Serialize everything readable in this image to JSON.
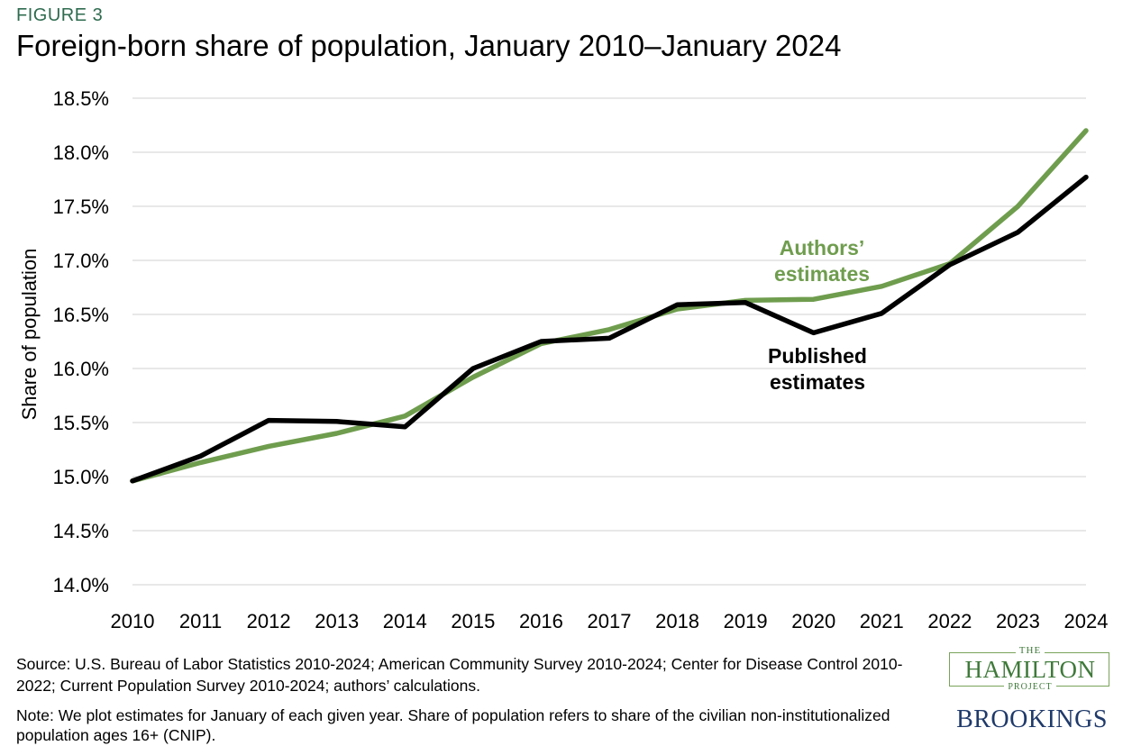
{
  "figure_label": "FIGURE 3",
  "title": "Foreign-born share of population, January 2010–January 2024",
  "source": "Source: U.S. Bureau of Labor Statistics 2010-2024; American Community Survey 2010-2024; Center for Disease Control 2010-2022; Current Population Survey 2010-2024; authors’ calculations.",
  "note": "Note: We plot estimates for January of each given year. Share of population refers to share of the civilian non-institutionalized population ages 16+ (CNIP).",
  "logos": {
    "hamilton_the": "THE",
    "hamilton_main": "HAMILTON",
    "hamilton_project": "PROJECT",
    "brookings": "BROOKINGS"
  },
  "chart_data": {
    "type": "line",
    "ylabel": "Share of  population",
    "xlabel": "",
    "x": [
      "2010",
      "2011",
      "2012",
      "2013",
      "2014",
      "2015",
      "2016",
      "2017",
      "2018",
      "2019",
      "2020",
      "2021",
      "2022",
      "2023",
      "2024"
    ],
    "ylim": [
      14.0,
      18.5
    ],
    "yticks": [
      14.0,
      14.5,
      15.0,
      15.5,
      16.0,
      16.5,
      17.0,
      17.5,
      18.0,
      18.5
    ],
    "ytick_labels": [
      "14.0%",
      "14.5%",
      "15.0%",
      "15.5%",
      "16.0%",
      "16.5%",
      "17.0%",
      "17.5%",
      "18.0%",
      "18.5%"
    ],
    "grid": true,
    "series": [
      {
        "name": "Authors’ estimates",
        "label_lines": [
          "Authors’",
          "estimates"
        ],
        "color": "#6f9d4e",
        "values": [
          14.96,
          15.13,
          15.28,
          15.4,
          15.56,
          15.92,
          16.23,
          16.36,
          16.55,
          16.63,
          16.64,
          16.76,
          16.97,
          17.5,
          18.2
        ]
      },
      {
        "name": "Published estimates",
        "label_lines": [
          "Published",
          "estimates"
        ],
        "color": "#000000",
        "values": [
          14.96,
          15.19,
          15.52,
          15.51,
          15.46,
          16.0,
          16.25,
          16.28,
          16.59,
          16.61,
          16.33,
          16.51,
          16.96,
          17.26,
          17.77
        ]
      }
    ]
  }
}
